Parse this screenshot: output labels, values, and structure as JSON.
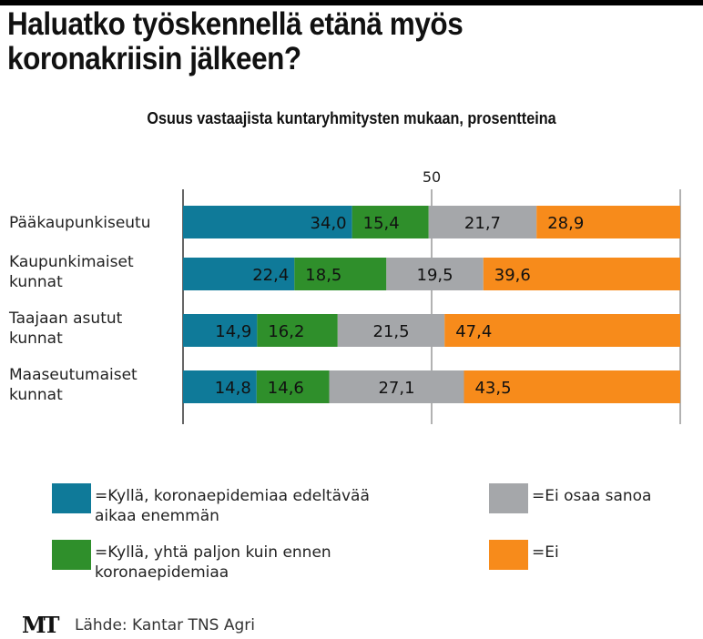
{
  "chart_data": {
    "type": "bar",
    "orientation": "horizontal",
    "stacked": true,
    "title": "Haluatko työskennellä etänä myös koronakriisin jälkeen?",
    "subtitle": "Osuus vastaajista kuntaryhmitysten mukaan, prosentteina",
    "categories": [
      "Pääkaupunkiseutu",
      "Kaupunkimaiset kunnat",
      "Taajaan asutut kunnat",
      "Maaseutumaiset kunnat"
    ],
    "category_lines": [
      [
        "Pääkaupunkiseutu"
      ],
      [
        "Kaupunkimaiset",
        "kunnat"
      ],
      [
        "Taajaan asutut",
        "kunnat"
      ],
      [
        "Maaseutumaiset",
        "kunnat"
      ]
    ],
    "series": [
      {
        "name": "=Kyllä, koronaepidemiaa edeltävää aikaa enemmän",
        "legend_lines": [
          "=Kyllä, koronaepidemiaa edeltävää",
          "aikaa enemmän"
        ],
        "color": "#0f7a99",
        "values": [
          34.0,
          22.4,
          14.9,
          14.8
        ],
        "labels": [
          "34,0",
          "22,4",
          "14,9",
          "14,8"
        ]
      },
      {
        "name": "=Kyllä, yhtä paljon kuin ennen koronaepidemiaa",
        "legend_lines": [
          "=Kyllä, yhtä paljon kuin ennen",
          "koronaepidemiaa"
        ],
        "color": "#2f8f2b",
        "values": [
          15.4,
          18.5,
          16.2,
          14.6
        ],
        "labels": [
          "15,4",
          "18,5",
          "16,2",
          "14,6"
        ]
      },
      {
        "name": "=Ei osaa sanoa",
        "legend_lines": [
          "=Ei osaa sanoa"
        ],
        "color": "#a5a7aa",
        "values": [
          21.7,
          19.5,
          21.5,
          27.1
        ],
        "labels": [
          "21,7",
          "19,5",
          "21,5",
          "27,1"
        ]
      },
      {
        "name": "=Ei",
        "legend_lines": [
          "=Ei"
        ],
        "color": "#f78b1b",
        "values": [
          28.9,
          39.6,
          47.4,
          43.5
        ],
        "labels": [
          "28,9",
          "39,6",
          "47,4",
          "43,5"
        ]
      }
    ],
    "xlim": [
      0,
      100
    ],
    "xticks": [
      "50"
    ],
    "grid": true,
    "legend_position": "bottom"
  },
  "source": "Lähde: Kantar TNS Agri",
  "logo": "MT"
}
